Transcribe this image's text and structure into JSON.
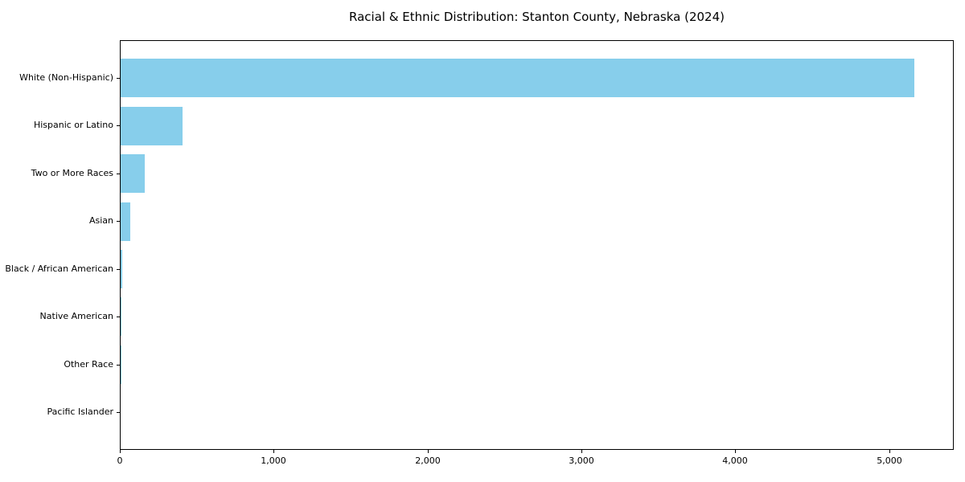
{
  "chart_data": {
    "type": "bar",
    "orientation": "horizontal",
    "title": "Racial & Ethnic Distribution: Stanton County, Nebraska (2024)",
    "categories": [
      "White (Non-Hispanic)",
      "Hispanic or Latino",
      "Two or More Races",
      "Asian",
      "Black / African American",
      "Native American",
      "Other Race",
      "Pacific Islander"
    ],
    "values": [
      5160,
      400,
      155,
      65,
      10,
      6,
      4,
      0
    ],
    "x_ticks": [
      0,
      1000,
      2000,
      3000,
      4000,
      5000
    ],
    "x_tick_labels": [
      "0",
      "1,000",
      "2,000",
      "3,000",
      "4,000",
      "5,000"
    ],
    "xlim": [
      0,
      5420
    ],
    "xlabel": "",
    "ylabel": "",
    "grid": false,
    "legend": "none",
    "bar_color": "#87CEEB",
    "frame_color": "#000000",
    "text_color": "#000000",
    "background_color": "#ffffff"
  }
}
